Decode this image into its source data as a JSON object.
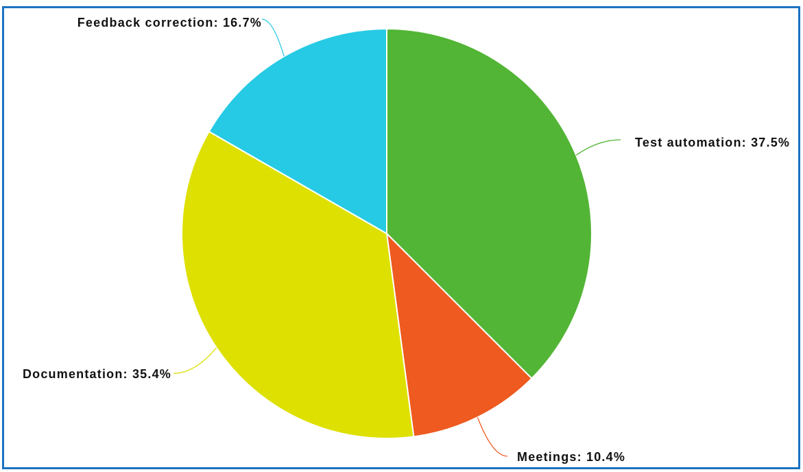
{
  "chart_data": {
    "type": "pie",
    "title": "",
    "slices": [
      {
        "label": "Test automation",
        "value": 37.5,
        "display": "Test automation: 37.5%",
        "color": "#52b535"
      },
      {
        "label": "Meetings",
        "value": 10.4,
        "display": "Meetings: 10.4%",
        "color": "#ee5a1f"
      },
      {
        "label": "Documentation",
        "value": 35.4,
        "display": "Documentation: 35.4%",
        "color": "#dde000"
      },
      {
        "label": "Feedback correction",
        "value": 16.7,
        "display": "Feedback correction: 16.7%",
        "color": "#26cae4"
      }
    ],
    "start_angle_deg": 0,
    "direction": "clockwise",
    "legend": "none",
    "frame_color": "#1b72c0"
  }
}
